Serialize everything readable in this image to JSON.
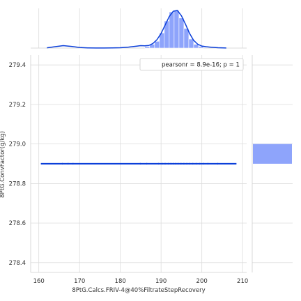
{
  "chart_data": {
    "type": "jointplot",
    "xlabel": "8PtG.Calcs.FRIV-4@40%FiltrateStepRecovery",
    "ylabel": "8PtG.ConvFactor(g/kg)",
    "xlim": [
      158,
      211
    ],
    "ylim": [
      278.35,
      279.45
    ],
    "x_ticks": [
      "160",
      "170",
      "180",
      "190",
      "200",
      "210"
    ],
    "y_ticks": [
      "278.4",
      "278.6",
      "278.8",
      "279.0",
      "279.2",
      "279.4"
    ],
    "grid": true,
    "legend": {
      "placement": "top-right",
      "text": "pearsonr = 8.9e-16; p = 1"
    },
    "colors": {
      "line": "#0b3fd9",
      "hist": "#8ea4fb",
      "grid": "#dcdcdc"
    },
    "regression": {
      "x": [
        160.5,
        208.5
      ],
      "y": [
        278.9,
        278.9
      ]
    },
    "scatter": {
      "y": 278.9,
      "x": [
        165.8,
        167.2,
        168.4,
        184.9,
        186.5,
        189.4,
        190.3,
        191.0,
        191.8,
        192.4,
        193.0,
        193.6,
        194.2,
        194.9,
        195.6,
        196.3,
        197.0,
        197.8,
        198.6,
        199.5,
        200.4,
        201.5,
        203.9
      ]
    },
    "x_marginal": {
      "bins": [
        {
          "from": 186.0,
          "to": 187.2,
          "count": 2
        },
        {
          "from": 187.2,
          "to": 188.4,
          "count": 5
        },
        {
          "from": 188.4,
          "to": 189.6,
          "count": 9
        },
        {
          "from": 189.6,
          "to": 190.8,
          "count": 20
        },
        {
          "from": 190.8,
          "to": 192.0,
          "count": 36
        },
        {
          "from": 192.0,
          "to": 193.2,
          "count": 48
        },
        {
          "from": 193.2,
          "to": 194.4,
          "count": 50
        },
        {
          "from": 194.4,
          "to": 195.6,
          "count": 40
        },
        {
          "from": 195.6,
          "to": 196.8,
          "count": 26
        },
        {
          "from": 196.8,
          "to": 198.0,
          "count": 12
        },
        {
          "from": 198.0,
          "to": 199.2,
          "count": 5
        },
        {
          "from": 199.2,
          "to": 200.4,
          "count": 2
        }
      ],
      "kde": {
        "x": [
          162,
          164,
          166,
          168,
          170,
          172,
          174,
          176,
          178,
          180,
          182,
          184,
          185,
          186,
          187,
          188,
          189,
          190,
          191,
          192,
          193,
          194,
          195,
          196,
          197,
          198,
          199,
          200,
          201,
          202,
          204,
          206
        ],
        "y": [
          0.3,
          1.8,
          3.2,
          2.2,
          0.8,
          0.2,
          0.1,
          0.1,
          0.2,
          0.5,
          1.2,
          2.5,
          3.2,
          3.0,
          3.4,
          6,
          11,
          19,
          30,
          41,
          48,
          49,
          42,
          31,
          19,
          10,
          5,
          2.6,
          1.8,
          1.3,
          0.5,
          0.1
        ]
      }
    },
    "y_marginal": {
      "bins": [
        {
          "from": 278.9,
          "to": 279.0,
          "count": 1
        }
      ]
    }
  }
}
